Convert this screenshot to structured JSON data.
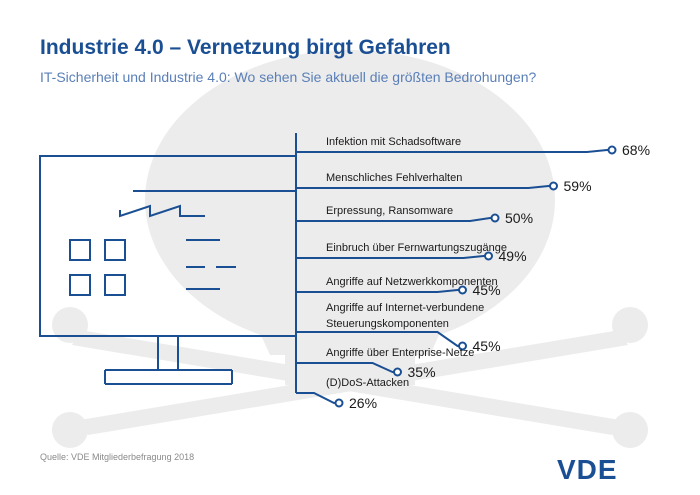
{
  "header": {
    "title": "Industrie 4.0 – Vernetzung birgt Gefahren",
    "subtitle": "IT-Sicherheit und Industrie 4.0: Wo sehen Sie aktuell die größten Bedrohungen?"
  },
  "footer": {
    "source": "Quelle: VDE Mitgliederbefragung 2018",
    "logo": "VDE"
  },
  "colors": {
    "title": "#1b4f93",
    "subtitle": "#5a7fb8",
    "line": "#1b4f93",
    "watermark": "#ececec",
    "text": "#1a1a1a"
  },
  "chart_data": {
    "type": "bar",
    "title": "Industrie 4.0 – Vernetzung birgt Gefahren",
    "subtitle": "IT-Sicherheit und Industrie 4.0: Wo sehen Sie aktuell die größten Bedrohungen?",
    "unit": "%",
    "categories": [
      "Infektion mit Schadsoftware",
      "Menschliches Fehlverhalten",
      "Erpressung, Ransomware",
      "Einbruch über Fernwartungszugänge",
      "Angriffe auf Netzwerkkomponenten",
      "Angriffe auf Internet-verbundene Steuerungskomponenten",
      "Angriffe über Enterprise-Netze",
      "(D)DoS-Attacken"
    ],
    "category_lines": [
      [
        "Infektion mit Schadsoftware"
      ],
      [
        "Menschliches Fehlverhalten"
      ],
      [
        "Erpressung, Ransomware"
      ],
      [
        "Einbruch über Fernwartungszugänge"
      ],
      [
        "Angriffe auf Netzwerkkomponenten"
      ],
      [
        "Angriffe auf Internet-verbundene",
        "Steuerungskomponenten"
      ],
      [
        "Angriffe über Enterprise-Netze"
      ],
      [
        "(D)DoS-Attacken"
      ]
    ],
    "values": [
      68,
      59,
      50,
      49,
      45,
      45,
      35,
      26
    ],
    "value_labels": [
      "68%",
      "59%",
      "50%",
      "49%",
      "45%",
      "45%",
      "35%",
      "26%"
    ]
  }
}
